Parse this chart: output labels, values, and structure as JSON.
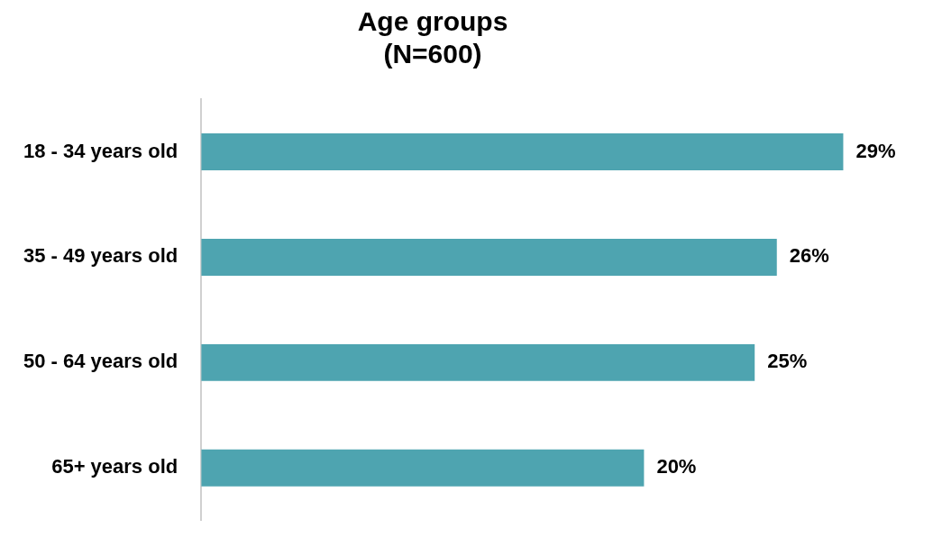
{
  "chart_data": {
    "type": "bar",
    "orientation": "horizontal",
    "title": "Age groups\n(N=600)",
    "categories": [
      "18 - 34 years old",
      "35 - 49 years old",
      "50 - 64 years old",
      "65+ years old"
    ],
    "values": [
      29,
      26,
      25,
      20
    ],
    "value_labels": [
      "29%",
      "26%",
      "25%",
      "20%"
    ],
    "color": "#4ea4b0",
    "legend": false
  }
}
